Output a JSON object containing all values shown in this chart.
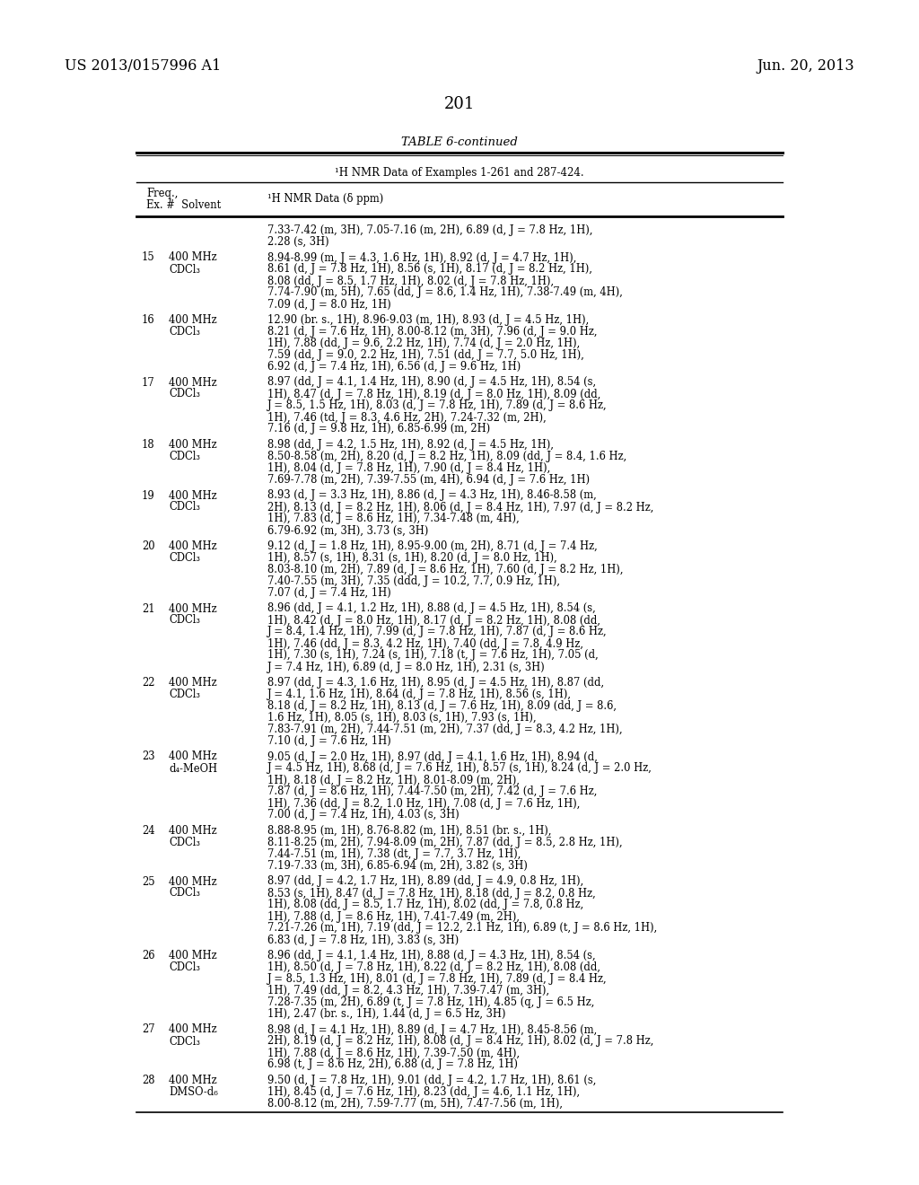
{
  "header_left": "US 2013/0157996 A1",
  "header_right": "Jun. 20, 2013",
  "page_number": "201",
  "table_title": "TABLE 6-continued",
  "table_subtitle": "¹H NMR Data of Examples 1-261 and 287-424.",
  "col1_header_line1": "Freq.,",
  "col1_header_line2": "Ex. #  Solvent",
  "col2_header": "¹H NMR Data (δ ppm)",
  "background_color": "#ffffff",
  "text_color": "#000000",
  "rows": [
    {
      "ex": "",
      "freq": "",
      "solvent": "",
      "data": "7.33-7.42 (m, 3H), 7.05-7.16 (m, 2H), 6.89 (d, J = 7.8 Hz, 1H),\n2.28 (s, 3H)"
    },
    {
      "ex": "15",
      "freq": "400 MHz",
      "solvent": "CDCl₃",
      "data": "8.94-8.99 (m, J = 4.3, 1.6 Hz, 1H), 8.92 (d, J = 4.7 Hz, 1H),\n8.61 (d, J = 7.8 Hz, 1H), 8.56 (s, 1H), 8.17 (d, J = 8.2 Hz, 1H),\n8.08 (dd, J = 8.5, 1.7 Hz, 1H), 8.02 (d, J = 7.8 Hz, 1H),\n7.74-7.90 (m, 5H), 7.65 (dd, J = 8.6, 1.4 Hz, 1H), 7.38-7.49 (m, 4H),\n7.09 (d, J = 8.0 Hz, 1H)"
    },
    {
      "ex": "16",
      "freq": "400 MHz",
      "solvent": "CDCl₃",
      "data": "12.90 (br. s., 1H), 8.96-9.03 (m, 1H), 8.93 (d, J = 4.5 Hz, 1H),\n8.21 (d, J = 7.6 Hz, 1H), 8.00-8.12 (m, 3H), 7.96 (d, J = 9.0 Hz,\n1H), 7.88 (dd, J = 9.6, 2.2 Hz, 1H), 7.74 (d, J = 2.0 Hz, 1H),\n7.59 (dd, J = 9.0, 2.2 Hz, 1H), 7.51 (dd, J = 7.7, 5.0 Hz, 1H),\n6.92 (d, J = 7.4 Hz, 1H), 6.56 (d, J = 9.6 Hz, 1H)"
    },
    {
      "ex": "17",
      "freq": "400 MHz",
      "solvent": "CDCl₃",
      "data": "8.97 (dd, J = 4.1, 1.4 Hz, 1H), 8.90 (d, J = 4.5 Hz, 1H), 8.54 (s,\n1H), 8.47 (d, J = 7.8 Hz, 1H), 8.19 (d, J = 8.0 Hz, 1H), 8.09 (dd,\nJ = 8.5, 1.5 Hz, 1H), 8.03 (d, J = 7.8 Hz, 1H), 7.89 (d, J = 8.6 Hz,\n1H), 7.46 (td, J = 8.3, 4.6 Hz, 2H), 7.24-7.32 (m, 2H),\n7.16 (d, J = 9.8 Hz, 1H), 6.85-6.99 (m, 2H)"
    },
    {
      "ex": "18",
      "freq": "400 MHz",
      "solvent": "CDCl₃",
      "data": "8.98 (dd, J = 4.2, 1.5 Hz, 1H), 8.92 (d, J = 4.5 Hz, 1H),\n8.50-8.58 (m, 2H), 8.20 (d, J = 8.2 Hz, 1H), 8.09 (dd, J = 8.4, 1.6 Hz,\n1H), 8.04 (d, J = 7.8 Hz, 1H), 7.90 (d, J = 8.4 Hz, 1H),\n7.69-7.78 (m, 2H), 7.39-7.55 (m, 4H), 6.94 (d, J = 7.6 Hz, 1H)"
    },
    {
      "ex": "19",
      "freq": "400 MHz",
      "solvent": "CDCl₃",
      "data": "8.93 (d, J = 3.3 Hz, 1H), 8.86 (d, J = 4.3 Hz, 1H), 8.46-8.58 (m,\n2H), 8.13 (d, J = 8.2 Hz, 1H), 8.06 (d, J = 8.4 Hz, 1H), 7.97 (d, J = 8.2 Hz,\n1H), 7.83 (d, J = 8.6 Hz, 1H), 7.34-7.48 (m, 4H),\n6.79-6.92 (m, 3H), 3.73 (s, 3H)"
    },
    {
      "ex": "20",
      "freq": "400 MHz",
      "solvent": "CDCl₃",
      "data": "9.12 (d, J = 1.8 Hz, 1H), 8.95-9.00 (m, 2H), 8.71 (d, J = 7.4 Hz,\n1H), 8.57 (s, 1H), 8.31 (s, 1H), 8.20 (d, J = 8.0 Hz, 1H),\n8.03-8.10 (m, 2H), 7.89 (d, J = 8.6 Hz, 1H), 7.60 (d, J = 8.2 Hz, 1H),\n7.40-7.55 (m, 3H), 7.35 (ddd, J = 10.2, 7.7, 0.9 Hz, 1H),\n7.07 (d, J = 7.4 Hz, 1H)"
    },
    {
      "ex": "21",
      "freq": "400 MHz",
      "solvent": "CDCl₃",
      "data": "8.96 (dd, J = 4.1, 1.2 Hz, 1H), 8.88 (d, J = 4.5 Hz, 1H), 8.54 (s,\n1H), 8.42 (d, J = 8.0 Hz, 1H), 8.17 (d, J = 8.2 Hz, 1H), 8.08 (dd,\nJ = 8.4, 1.4 Hz, 1H), 7.99 (d, J = 7.8 Hz, 1H), 7.87 (d, J = 8.6 Hz,\n1H), 7.46 (dd, J = 8.3, 4.2 Hz, 1H), 7.40 (dd, J = 7.8, 4.9 Hz,\n1H), 7.30 (s, 1H), 7.24 (s, 1H), 7.18 (t, J = 7.6 Hz, 1H), 7.05 (d,\nJ = 7.4 Hz, 1H), 6.89 (d, J = 8.0 Hz, 1H), 2.31 (s, 3H)"
    },
    {
      "ex": "22",
      "freq": "400 MHz",
      "solvent": "CDCl₃",
      "data": "8.97 (dd, J = 4.3, 1.6 Hz, 1H), 8.95 (d, J = 4.5 Hz, 1H), 8.87 (dd,\nJ = 4.1, 1.6 Hz, 1H), 8.64 (d, J = 7.8 Hz, 1H), 8.56 (s, 1H),\n8.18 (d, J = 8.2 Hz, 1H), 8.13 (d, J = 7.6 Hz, 1H), 8.09 (dd, J = 8.6,\n1.6 Hz, 1H), 8.05 (s, 1H), 8.03 (s, 1H), 7.93 (s, 1H),\n7.83-7.91 (m, 2H), 7.44-7.51 (m, 2H), 7.37 (dd, J = 8.3, 4.2 Hz, 1H),\n7.10 (d, J = 7.6 Hz, 1H)"
    },
    {
      "ex": "23",
      "freq": "400 MHz",
      "solvent": "d₄-MeOH",
      "data": "9.05 (d, J = 2.0 Hz, 1H), 8.97 (dd, J = 4.1, 1.6 Hz, 1H), 8.94 (d,\nJ = 4.5 Hz, 1H), 8.68 (d, J = 7.6 Hz, 1H), 8.57 (s, 1H), 8.24 (d, J = 2.0 Hz,\n1H), 8.18 (d, J = 8.2 Hz, 1H), 8.01-8.09 (m, 2H),\n7.87 (d, J = 8.6 Hz, 1H), 7.44-7.50 (m, 2H), 7.42 (d, J = 7.6 Hz,\n1H), 7.36 (dd, J = 8.2, 1.0 Hz, 1H), 7.08 (d, J = 7.6 Hz, 1H),\n7.00 (d, J = 7.4 Hz, 1H), 4.03 (s, 3H)"
    },
    {
      "ex": "24",
      "freq": "400 MHz",
      "solvent": "CDCl₃",
      "data": "8.88-8.95 (m, 1H), 8.76-8.82 (m, 1H), 8.51 (br. s., 1H),\n8.11-8.25 (m, 2H), 7.94-8.09 (m, 2H), 7.87 (dd, J = 8.5, 2.8 Hz, 1H),\n7.44-7.51 (m, 1H), 7.38 (dt, J = 7.7, 3.7 Hz, 1H),\n7.19-7.33 (m, 3H), 6.85-6.94 (m, 2H), 3.82 (s, 3H)"
    },
    {
      "ex": "25",
      "freq": "400 MHz",
      "solvent": "CDCl₃",
      "data": "8.97 (dd, J = 4.2, 1.7 Hz, 1H), 8.89 (dd, J = 4.9, 0.8 Hz, 1H),\n8.53 (s, 1H), 8.47 (d, J = 7.8 Hz, 1H), 8.18 (dd, J = 8.2, 0.8 Hz,\n1H), 8.08 (dd, J = 8.5, 1.7 Hz, 1H), 8.02 (dd, J = 7.8, 0.8 Hz,\n1H), 7.88 (d, J = 8.6 Hz, 1H), 7.41-7.49 (m, 2H),\n7.21-7.26 (m, 1H), 7.19 (dd, J = 12.2, 2.1 Hz, 1H), 6.89 (t, J = 8.6 Hz, 1H),\n6.83 (d, J = 7.8 Hz, 1H), 3.83 (s, 3H)"
    },
    {
      "ex": "26",
      "freq": "400 MHz",
      "solvent": "CDCl₃",
      "data": "8.96 (dd, J = 4.1, 1.4 Hz, 1H), 8.88 (d, J = 4.3 Hz, 1H), 8.54 (s,\n1H), 8.50 (d, J = 7.8 Hz, 1H), 8.22 (d, J = 8.2 Hz, 1H), 8.08 (dd,\nJ = 8.5, 1.3 Hz, 1H), 8.01 (d, J = 7.8 Hz, 1H), 7.89 (d, J = 8.4 Hz,\n1H), 7.49 (dd, J = 8.2, 4.3 Hz, 1H), 7.39-7.47 (m, 3H),\n7.28-7.35 (m, 2H), 6.89 (t, J = 7.8 Hz, 1H), 4.85 (q, J = 6.5 Hz,\n1H), 2.47 (br. s., 1H), 1.44 (d, J = 6.5 Hz, 3H)"
    },
    {
      "ex": "27",
      "freq": "400 MHz",
      "solvent": "CDCl₃",
      "data": "8.98 (d, J = 4.1 Hz, 1H), 8.89 (d, J = 4.7 Hz, 1H), 8.45-8.56 (m,\n2H), 8.19 (d, J = 8.2 Hz, 1H), 8.08 (d, J = 8.4 Hz, 1H), 8.02 (d, J = 7.8 Hz,\n1H), 7.88 (d, J = 8.6 Hz, 1H), 7.39-7.50 (m, 4H),\n6.98 (t, J = 8.6 Hz, 2H), 6.88 (d, J = 7.8 Hz, 1H)"
    },
    {
      "ex": "28",
      "freq": "400 MHz",
      "solvent": "DMSO-d₆",
      "data": "9.50 (d, J = 7.8 Hz, 1H), 9.01 (dd, J = 4.2, 1.7 Hz, 1H), 8.61 (s,\n1H), 8.45 (d, J = 7.6 Hz, 1H), 8.23 (dd, J = 4.6, 1.1 Hz, 1H),\n8.00-8.12 (m, 2H), 7.59-7.77 (m, 5H), 7.47-7.56 (m, 1H),"
    }
  ]
}
